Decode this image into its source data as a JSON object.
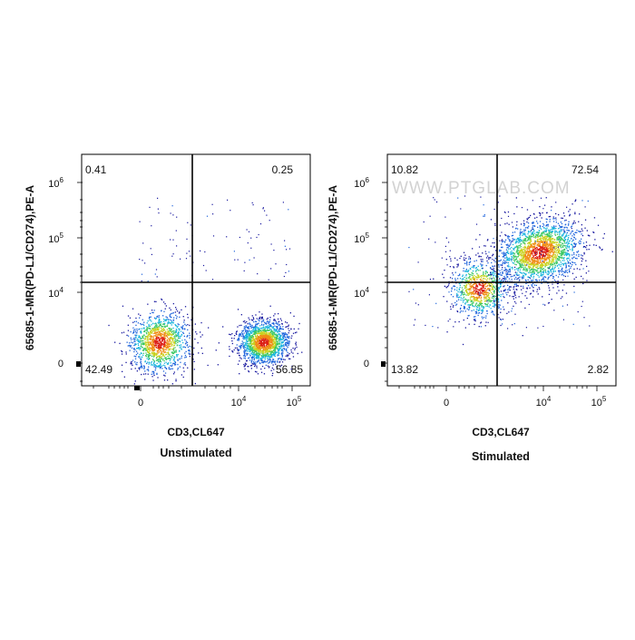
{
  "chart_data": [
    {
      "type": "scatter",
      "subtype": "flow-cytometry-density-dot-plot",
      "title": "Unstimulated",
      "xlabel": "CD3,CL647",
      "ylabel": "65685-1-MR(PD-L1/CD274),PE-A",
      "x_scale": "biexponential",
      "y_scale": "biexponential",
      "x_ticks": [
        "0",
        "10",
        "10"
      ],
      "x_tick_exponents": [
        "",
        "4",
        "5"
      ],
      "y_ticks": [
        "0",
        "10",
        "10",
        "10"
      ],
      "y_tick_exponents": [
        "",
        "4",
        "5",
        "6"
      ],
      "gate": {
        "x": 3500,
        "y": 20000
      },
      "quadrants": {
        "upper_left": "0.41",
        "upper_right": "0.25",
        "lower_left": "42.49",
        "lower_right": "56.85"
      },
      "populations": [
        {
          "x_center": 900,
          "y_center": 1500,
          "fraction": 0.42
        },
        {
          "x_center": 18000,
          "y_center": 1500,
          "fraction": 0.57
        }
      ],
      "color_scale": [
        "#1a1aa0",
        "#1e64dc",
        "#17b4dc",
        "#3cc864",
        "#c8d21e",
        "#f08c14",
        "#dc1e14"
      ]
    },
    {
      "type": "scatter",
      "subtype": "flow-cytometry-density-dot-plot",
      "title": "Stimulated",
      "xlabel": "CD3,CL647",
      "ylabel": "65685-1-MR(PD-L1/CD274),PE-A",
      "x_scale": "biexponential",
      "y_scale": "biexponential",
      "x_ticks": [
        "0",
        "10",
        "10"
      ],
      "x_tick_exponents": [
        "",
        "4",
        "5"
      ],
      "y_ticks": [
        "0",
        "10",
        "10",
        "10"
      ],
      "y_tick_exponents": [
        "",
        "4",
        "5",
        "6"
      ],
      "gate": {
        "x": 3500,
        "y": 20000
      },
      "quadrants": {
        "upper_left": "10.82",
        "upper_right": "72.54",
        "lower_left": "13.82",
        "lower_right": "2.82"
      },
      "populations": [
        {
          "x_center": 1700,
          "y_center": 12000,
          "fraction": 0.25
        },
        {
          "x_center": 9000,
          "y_center": 55000,
          "fraction": 0.73
        }
      ],
      "color_scale": [
        "#1a1aa0",
        "#1e64dc",
        "#17b4dc",
        "#3cc864",
        "#c8d21e",
        "#f08c14",
        "#dc1e14"
      ]
    }
  ],
  "watermark": "WWW.PTGLAB.COM"
}
